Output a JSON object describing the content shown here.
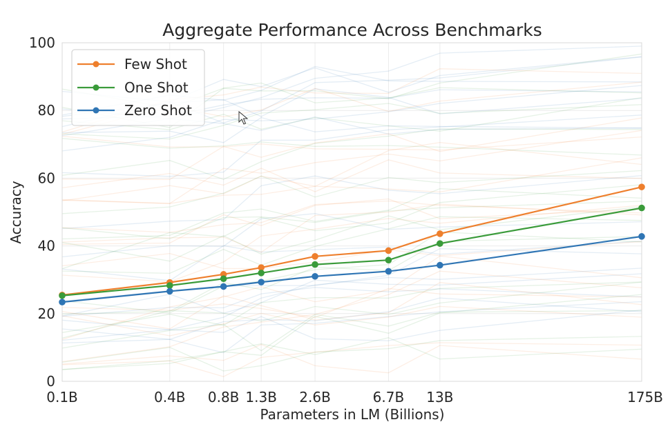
{
  "chart_data": {
    "type": "line",
    "title": "Aggregate Performance Across Benchmarks",
    "xlabel": "Parameters in LM (Billions)",
    "ylabel": "Accuracy",
    "x_params_billions": [
      0.1,
      0.4,
      0.8,
      1.3,
      2.6,
      6.7,
      13,
      175
    ],
    "categories": [
      "0.1B",
      "0.4B",
      "0.8B",
      "1.3B",
      "2.6B",
      "6.7B",
      "13B",
      "175B"
    ],
    "ylim": [
      0,
      100
    ],
    "yticks": [
      0,
      20,
      40,
      60,
      80,
      100
    ],
    "x_scale": "log",
    "grid": true,
    "legend_position": "top-left",
    "series": [
      {
        "name": "Few Shot",
        "color": "#ee7f2d",
        "values": [
          25.5,
          29.2,
          31.6,
          33.6,
          36.9,
          38.6,
          43.6,
          57.4
        ]
      },
      {
        "name": "One Shot",
        "color": "#3a9b3a",
        "values": [
          25.3,
          28.3,
          30.3,
          32.0,
          34.5,
          35.8,
          40.7,
          51.2
        ]
      },
      {
        "name": "Zero Shot",
        "color": "#2f75b4",
        "values": [
          23.4,
          26.6,
          28.0,
          29.3,
          31.0,
          32.5,
          34.3,
          42.8
        ]
      }
    ],
    "background_tasks": {
      "description_count": 60,
      "colors": [
        "#ee7f2d",
        "#3a9b3a",
        "#2f75b4"
      ]
    }
  },
  "cursor": {
    "icon": "mouse-pointer-icon"
  }
}
